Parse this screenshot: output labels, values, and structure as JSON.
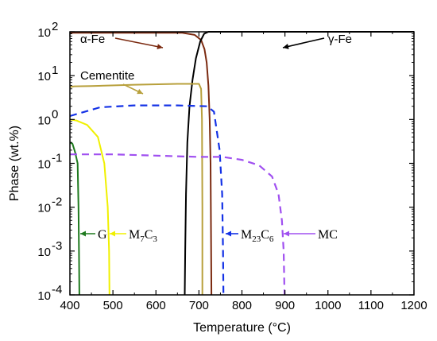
{
  "chart_data": {
    "type": "line",
    "xlabel": "Temperature (°C)",
    "ylabel": "Phase (wt.%)",
    "xlim": [
      400,
      1200
    ],
    "ylim": [
      0.0001,
      100
    ],
    "yscale": "log",
    "grid": false,
    "legend": "none",
    "x_ticks": [
      "400",
      "500",
      "600",
      "700",
      "800",
      "900",
      "1000",
      "1100",
      "1200"
    ],
    "y_ticks": [
      {
        "value": 0.0001,
        "base": "10",
        "exp": "-4"
      },
      {
        "value": 0.001,
        "base": "10",
        "exp": "-3"
      },
      {
        "value": 0.01,
        "base": "10",
        "exp": "-2"
      },
      {
        "value": 0.1,
        "base": "10",
        "exp": "-1"
      },
      {
        "value": 1,
        "base": "10",
        "exp": "0"
      },
      {
        "value": 10,
        "base": "10",
        "exp": "1"
      },
      {
        "value": 100,
        "base": "10",
        "exp": "2"
      }
    ],
    "series": [
      {
        "key": "alpha",
        "color": "#7b2a10",
        "dash": false,
        "points": [
          [
            400,
            95
          ],
          [
            660,
            95
          ],
          [
            690,
            85
          ],
          [
            705,
            65
          ],
          [
            713,
            40
          ],
          [
            718,
            20
          ],
          [
            722,
            6
          ],
          [
            725,
            1
          ],
          [
            727,
            0.1
          ],
          [
            729,
            0.0001
          ]
        ]
      },
      {
        "key": "gamma",
        "color": "#000000",
        "dash": false,
        "points": [
          [
            667,
            0.0001
          ],
          [
            668,
            0.001
          ],
          [
            670,
            0.02
          ],
          [
            673,
            0.3
          ],
          [
            678,
            2
          ],
          [
            685,
            8
          ],
          [
            693,
            25
          ],
          [
            703,
            60
          ],
          [
            712,
            90
          ],
          [
            722,
            100
          ],
          [
            1200,
            100
          ]
        ]
      },
      {
        "key": "cementite",
        "color": "#b8a03c",
        "dash": false,
        "points": [
          [
            400,
            5.5
          ],
          [
            410,
            5.7
          ],
          [
            450,
            5.8
          ],
          [
            550,
            6.2
          ],
          [
            650,
            6.5
          ],
          [
            700,
            6.5
          ],
          [
            705,
            5
          ],
          [
            707,
            1
          ],
          [
            708,
            0.01
          ],
          [
            708,
            0.0001
          ]
        ]
      },
      {
        "key": "m7c3",
        "color": "#f0f000",
        "dash": false,
        "points": [
          [
            400,
            1
          ],
          [
            415,
            0.95
          ],
          [
            440,
            0.75
          ],
          [
            465,
            0.4
          ],
          [
            480,
            0.1
          ],
          [
            488,
            0.01
          ],
          [
            491,
            0.001
          ],
          [
            492,
            0.0001
          ]
        ]
      },
      {
        "key": "g",
        "color": "#1f7a1f",
        "dash": false,
        "points": [
          [
            400,
            0.3
          ],
          [
            406,
            0.28
          ],
          [
            412,
            0.18
          ],
          [
            418,
            0.1
          ],
          [
            420,
            0.01
          ],
          [
            421,
            0.001
          ],
          [
            422,
            0.0001
          ]
        ]
      },
      {
        "key": "m23c6",
        "color": "#1432e6",
        "dash": true,
        "points": [
          [
            400,
            1.2
          ],
          [
            470,
            1.9
          ],
          [
            550,
            2.1
          ],
          [
            650,
            2.1
          ],
          [
            720,
            2.0
          ],
          [
            735,
            1.5
          ],
          [
            748,
            0.2
          ],
          [
            754,
            0.02
          ],
          [
            756,
            0.001
          ],
          [
            757,
            0.0001
          ]
        ]
      },
      {
        "key": "mc",
        "color": "#a050f0",
        "dash": true,
        "points": [
          [
            400,
            0.16
          ],
          [
            500,
            0.16
          ],
          [
            650,
            0.145
          ],
          [
            700,
            0.14
          ],
          [
            755,
            0.14
          ],
          [
            800,
            0.12
          ],
          [
            840,
            0.09
          ],
          [
            870,
            0.05
          ],
          [
            885,
            0.02
          ],
          [
            893,
            0.005
          ],
          [
            897,
            0.001
          ],
          [
            899,
            0.0001
          ]
        ]
      }
    ],
    "annotations": [
      {
        "key": "alpha",
        "text": "α-Fe",
        "style": "sans"
      },
      {
        "key": "gamma",
        "text": "γ-Fe",
        "style": "sans"
      },
      {
        "key": "cementite",
        "text": "Cementite",
        "style": "sans"
      },
      {
        "key": "g",
        "text": "G",
        "style": "serif"
      },
      {
        "key": "m7c3",
        "text": "M",
        "sub": "7",
        "text2": "C",
        "sub2": "3",
        "style": "serif"
      },
      {
        "key": "m23c6",
        "text": "M",
        "sub": "23",
        "text2": "C",
        "sub2": "6",
        "style": "serif"
      },
      {
        "key": "mc",
        "text": "MC",
        "style": "serif"
      }
    ]
  }
}
